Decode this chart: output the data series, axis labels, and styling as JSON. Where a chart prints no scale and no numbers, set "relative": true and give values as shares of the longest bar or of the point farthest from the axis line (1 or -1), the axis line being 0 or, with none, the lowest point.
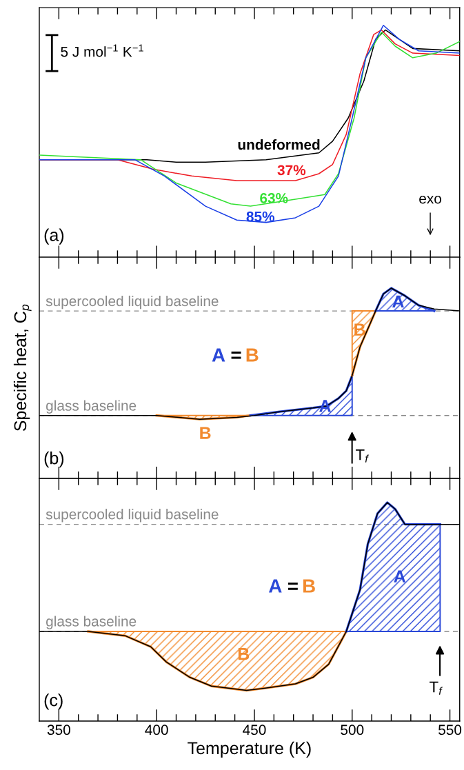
{
  "chart_data": [
    {
      "type": "line",
      "relative": true,
      "xlim": [
        340,
        555
      ],
      "xticks": [
        350,
        {
          "value": 360,
          "label": null
        },
        {
          "value": 370,
          "label": null
        },
        {
          "value": 380,
          "label": null
        },
        {
          "value": 390,
          "label": null
        },
        400,
        {
          "value": 410,
          "label": null
        },
        {
          "value": 420,
          "label": null
        },
        {
          "value": 430,
          "label": null
        },
        {
          "value": 440,
          "label": null
        },
        450,
        {
          "value": 460,
          "label": null
        },
        {
          "value": 470,
          "label": null
        },
        {
          "value": 480,
          "label": null
        },
        {
          "value": 490,
          "label": null
        },
        500,
        {
          "value": 510,
          "label": null
        },
        {
          "value": 520,
          "label": null
        },
        {
          "value": 530,
          "label": null
        },
        {
          "value": 540,
          "label": null
        },
        550
      ],
      "tick_labels": false,
      "series": [
        {
          "name": "undeformed",
          "color": "#000000",
          "x": [
            340,
            395,
            410,
            425,
            456,
            483,
            490,
            498,
            506,
            512,
            517,
            524,
            531,
            555
          ],
          "values": [
            0.42,
            0.42,
            0.41,
            0.41,
            0.42,
            0.45,
            0.5,
            0.6,
            0.76,
            0.94,
            0.98,
            0.94,
            0.9,
            0.89
          ]
        },
        {
          "name": "37%",
          "color": "#ee1c24",
          "x": [
            340,
            380,
            398,
            418,
            441,
            471,
            483,
            490,
            497,
            504,
            511,
            515,
            522,
            531,
            555
          ],
          "values": [
            0.42,
            0.42,
            0.38,
            0.35,
            0.33,
            0.33,
            0.36,
            0.4,
            0.53,
            0.79,
            0.96,
            0.98,
            0.92,
            0.88,
            0.87
          ]
        },
        {
          "name": "63%",
          "color": "#33e033",
          "x": [
            340,
            392,
            410,
            438,
            448,
            471,
            486,
            493,
            501,
            507,
            515,
            522,
            531,
            543,
            555
          ],
          "values": [
            0.44,
            0.42,
            0.32,
            0.23,
            0.22,
            0.25,
            0.27,
            0.36,
            0.6,
            0.86,
            0.97,
            0.91,
            0.86,
            0.88,
            0.93
          ]
        },
        {
          "name": "85%",
          "color": "#1a3fe6",
          "x": [
            340,
            389,
            404,
            425,
            441,
            456,
            471,
            483,
            493,
            500,
            507,
            516,
            524,
            534,
            555
          ],
          "values": [
            0.42,
            0.42,
            0.35,
            0.22,
            0.16,
            0.15,
            0.17,
            0.22,
            0.35,
            0.6,
            0.86,
            1.0,
            0.94,
            0.89,
            0.88
          ]
        }
      ],
      "annotations": [
        "5 J mol$^{−1}$ K$^{−1}$",
        "exo",
        "(a)"
      ]
    },
    {
      "type": "line",
      "relative": true,
      "xlim": [
        340,
        555
      ],
      "xticks": [
        350,
        {
          "value": 360,
          "label": null
        },
        {
          "value": 370,
          "label": null
        },
        {
          "value": 380,
          "label": null
        },
        {
          "value": 390,
          "label": null
        },
        400,
        {
          "value": 410,
          "label": null
        },
        {
          "value": 420,
          "label": null
        },
        {
          "value": 430,
          "label": null
        },
        {
          "value": 440,
          "label": null
        },
        450,
        {
          "value": 460,
          "label": null
        },
        {
          "value": 470,
          "label": null
        },
        {
          "value": 480,
          "label": null
        },
        {
          "value": 490,
          "label": null
        },
        500,
        {
          "value": 510,
          "label": null
        },
        {
          "value": 520,
          "label": null
        },
        {
          "value": 530,
          "label": null
        },
        {
          "value": 540,
          "label": null
        },
        550
      ],
      "tick_labels": false,
      "ylabel": "Specific heat, C$_{p}$",
      "series": [
        {
          "color": "#000000",
          "x": [
            340,
            400,
            422,
            441,
            450,
            463,
            480,
            487,
            493,
            497,
            500,
            504,
            512,
            516,
            520,
            527,
            534,
            542,
            555
          ],
          "values": [
            0.33,
            0.33,
            0.31,
            0.32,
            0.33,
            0.35,
            0.37,
            0.38,
            0.42,
            0.46,
            0.54,
            0.69,
            0.88,
            0.97,
            1.0,
            0.96,
            0.91,
            0.89,
            0.88
          ]
        },
        {
          "name": "B",
          "color": "#f28a2e",
          "x": [
            400,
            422,
            441,
            448
          ],
          "values": [
            0.33,
            0.31,
            0.32,
            0.33
          ],
          "lower": [
            0.33,
            0.31,
            0.32,
            0.33
          ],
          "upper": [
            0.33,
            0.33,
            0.33,
            0.33
          ]
        },
        {
          "name": "A",
          "color": "#2a48d8",
          "x": [
            448,
            463,
            480,
            487,
            493,
            497,
            500
          ],
          "values": [
            0.33,
            0.35,
            0.37,
            0.38,
            0.42,
            0.46,
            0.54
          ],
          "lower": [
            0.33,
            0.33,
            0.33,
            0.33,
            0.33,
            0.33,
            0.33
          ],
          "upper": [
            0.33,
            0.35,
            0.37,
            0.38,
            0.42,
            0.46,
            0.54
          ]
        },
        {
          "name": "B",
          "color": "#f28a2e",
          "x": [
            500,
            504,
            512
          ],
          "values": [
            0.54,
            0.69,
            0.88
          ],
          "lower": [
            0.54,
            0.69,
            0.88
          ],
          "upper": [
            0.88,
            0.88,
            0.88
          ]
        },
        {
          "name": "A",
          "color": "#2a48d8",
          "x": [
            512,
            516,
            520,
            527,
            534,
            542
          ],
          "values": [
            0.88,
            0.97,
            1.0,
            0.96,
            0.91,
            0.88
          ],
          "lower": [
            0.88,
            0.88,
            0.88,
            0.88,
            0.88,
            0.88
          ],
          "upper": [
            0.88,
            0.97,
            1.0,
            0.96,
            0.91,
            0.88
          ]
        }
      ],
      "ref_lines": [
        {
          "axis": "y",
          "value": 0.88,
          "label": "supercooled liquid baseline",
          "color": "#888888",
          "line_style": "dashed"
        },
        {
          "axis": "y",
          "value": 0.33,
          "label": "glass baseline",
          "color": "#888888",
          "line_style": "dashed"
        }
      ],
      "annotations": [
        "A = B",
        "(b)",
        "T$_{f}$"
      ]
    },
    {
      "type": "line",
      "relative": true,
      "xlim": [
        340,
        555
      ],
      "xticks": [
        350,
        {
          "value": 360,
          "label": null
        },
        {
          "value": 370,
          "label": null
        },
        {
          "value": 380,
          "label": null
        },
        {
          "value": 390,
          "label": null
        },
        400,
        {
          "value": 410,
          "label": null
        },
        {
          "value": 420,
          "label": null
        },
        {
          "value": 430,
          "label": null
        },
        {
          "value": 440,
          "label": null
        },
        450,
        {
          "value": 460,
          "label": null
        },
        {
          "value": 470,
          "label": null
        },
        {
          "value": 480,
          "label": null
        },
        {
          "value": 490,
          "label": null
        },
        500,
        {
          "value": 510,
          "label": null
        },
        {
          "value": 520,
          "label": null
        },
        {
          "value": 530,
          "label": null
        },
        {
          "value": 540,
          "label": null
        },
        550
      ],
      "tick_labels": "x",
      "xlabel": "Temperature (K)",
      "series": [
        {
          "color": "#000000",
          "x": [
            340,
            365,
            384,
            397,
            405,
            417,
            428,
            446,
            455,
            471,
            480,
            488,
            494,
            497,
            504,
            508,
            513,
            518,
            522,
            527,
            544,
            555
          ],
          "values": [
            0.41,
            0.41,
            0.39,
            0.34,
            0.27,
            0.2,
            0.16,
            0.14,
            0.15,
            0.17,
            0.2,
            0.26,
            0.36,
            0.41,
            0.6,
            0.81,
            0.95,
            1.0,
            0.97,
            0.9,
            0.9,
            0.9
          ]
        },
        {
          "name": "B",
          "color": "#f28a2e",
          "x": [
            365,
            384,
            397,
            405,
            417,
            428,
            446,
            455,
            471,
            480,
            488,
            494,
            497
          ],
          "values": [
            0.41,
            0.39,
            0.34,
            0.27,
            0.2,
            0.16,
            0.14,
            0.15,
            0.17,
            0.2,
            0.26,
            0.36,
            0.41
          ],
          "lower": [
            0.41,
            0.39,
            0.34,
            0.27,
            0.2,
            0.16,
            0.14,
            0.15,
            0.17,
            0.2,
            0.26,
            0.36,
            0.41
          ],
          "upper": [
            0.41,
            0.41,
            0.41,
            0.41,
            0.41,
            0.41,
            0.41,
            0.41,
            0.41,
            0.41,
            0.41,
            0.41,
            0.41
          ]
        },
        {
          "name": "A",
          "color": "#2a48d8",
          "x": [
            497,
            504,
            508,
            513,
            518,
            522,
            527,
            544,
            545
          ],
          "values": [
            0.41,
            0.6,
            0.81,
            0.95,
            1.0,
            0.97,
            0.9,
            0.9,
            0.9
          ],
          "lower": [
            0.41,
            0.41,
            0.41,
            0.41,
            0.41,
            0.41,
            0.41,
            0.41,
            0.41
          ],
          "upper": [
            0.41,
            0.6,
            0.81,
            0.95,
            1.0,
            0.97,
            0.9,
            0.9,
            0.9
          ]
        }
      ],
      "ref_lines": [
        {
          "axis": "y",
          "value": 0.9,
          "label": "supercooled liquid baseline",
          "color": "#888888",
          "line_style": "dashed"
        },
        {
          "axis": "y",
          "value": 0.41,
          "label": "glass baseline",
          "color": "#888888",
          "line_style": "dashed"
        }
      ],
      "annotations": [
        "A = B",
        "(c)",
        "T$_{f}$"
      ]
    }
  ]
}
